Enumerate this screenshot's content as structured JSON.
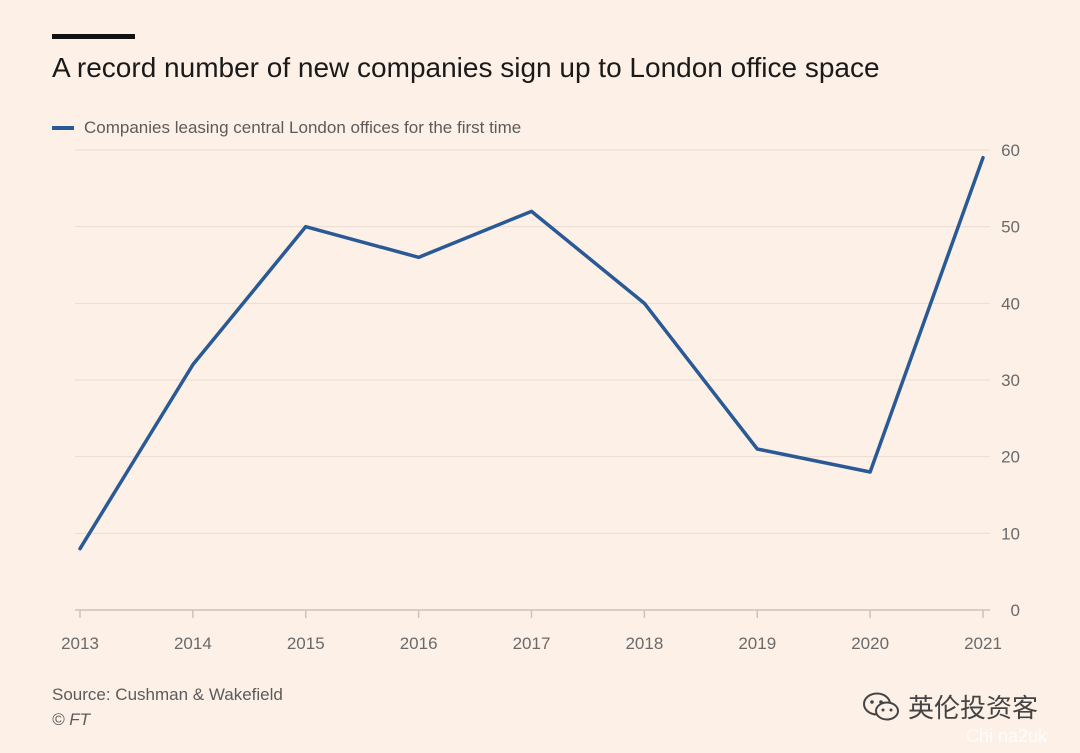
{
  "header": {
    "title": "A record number of new companies sign up to London office space"
  },
  "colors": {
    "line": "#2a5a96",
    "grid": "#e9ddd2",
    "tick_text": "#6a6a6a",
    "axis": "#cfc3b8"
  },
  "footer": {
    "source": "Source: Cushman & Wakefield",
    "copyright": "© FT"
  },
  "watermark": {
    "logo_icon": "wechat-icon",
    "text": "英伦投资客",
    "sub_text": "Chi na2uk"
  },
  "chart_data": {
    "type": "line",
    "x": [
      "2013",
      "2014",
      "2015",
      "2016",
      "2017",
      "2018",
      "2019",
      "2020",
      "2021"
    ],
    "series": [
      {
        "name": "Companies leasing central London offices for the first time",
        "values": [
          8,
          32,
          50,
          46,
          52,
          40,
          21,
          18,
          59
        ]
      }
    ],
    "title": "A record number of new companies sign up to London office space",
    "xlabel": "",
    "ylabel": "",
    "ylim": [
      0,
      60
    ],
    "yticks": [
      0,
      10,
      20,
      30,
      40,
      50,
      60
    ],
    "grid": true,
    "legend": "top-left",
    "y_axis_side": "right"
  }
}
